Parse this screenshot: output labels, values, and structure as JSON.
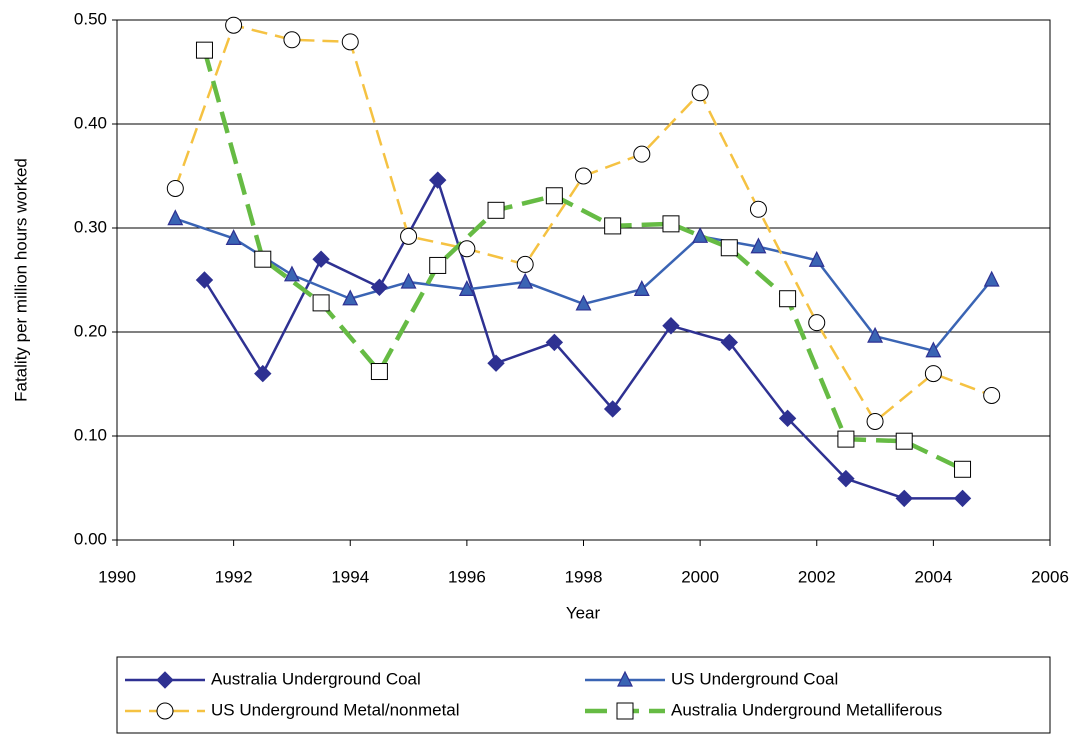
{
  "chart_data": {
    "type": "line",
    "xlabel": "Year",
    "ylabel": "Fatality per million hours worked",
    "xlim": [
      1990,
      2006
    ],
    "xticks": [
      1990,
      1992,
      1994,
      1996,
      1998,
      2000,
      2002,
      2004,
      2006
    ],
    "ylim": [
      0,
      0.5
    ],
    "yticks": [
      {
        "value": 0,
        "label": "0.00"
      },
      {
        "value": 0.1,
        "label": "0.10"
      },
      {
        "value": 0.2,
        "label": "0.20"
      },
      {
        "value": 0.3,
        "label": "0.30"
      },
      {
        "value": 0.4,
        "label": "0.40"
      },
      {
        "value": 0.5,
        "label": "0.50"
      }
    ],
    "grid": true,
    "legend": "bottom",
    "series": [
      {
        "name": "Australia Underground Coal",
        "color": "#2e3192",
        "marker": "diamond",
        "line_style": "solid",
        "x": [
          1991.5,
          1992.5,
          1993.5,
          1994.5,
          1995.5,
          1996.5,
          1997.5,
          1998.5,
          1999.5,
          2000.5,
          2001.5,
          2002.5,
          2003.5,
          2004.5
        ],
        "values": [
          0.25,
          0.16,
          0.27,
          0.243,
          0.346,
          0.17,
          0.19,
          0.126,
          0.206,
          0.19,
          0.117,
          0.059,
          0.04,
          0.04
        ]
      },
      {
        "name": "US Underground Coal",
        "color": "#3a64b4",
        "marker": "triangle",
        "line_style": "solid",
        "x": [
          1991,
          1992,
          1993,
          1994,
          1995,
          1996,
          1997,
          1998,
          1999,
          2000,
          2001,
          2002,
          2003,
          2004,
          2005
        ],
        "values": [
          0.309,
          0.29,
          0.255,
          0.232,
          0.248,
          0.241,
          0.248,
          0.227,
          0.241,
          0.292,
          0.282,
          0.269,
          0.196,
          0.182,
          0.25
        ]
      },
      {
        "name": "US Underground Metal/nonmetal",
        "color": "#f5c242",
        "marker": "circle",
        "line_style": "dashed",
        "x": [
          1991,
          1992,
          1993,
          1994,
          1995,
          1996,
          1997,
          1998,
          1999,
          2000,
          2001,
          2002,
          2003,
          2004,
          2005
        ],
        "values": [
          0.338,
          0.495,
          0.481,
          0.479,
          0.292,
          0.28,
          0.265,
          0.35,
          0.371,
          0.43,
          0.318,
          0.209,
          0.114,
          0.16,
          0.139
        ]
      },
      {
        "name": "Australia Underground Metalliferous",
        "color": "#66bb44",
        "marker": "square",
        "line_style": "dashed",
        "x": [
          1991.5,
          1992.5,
          1993.5,
          1994.5,
          1995.5,
          1996.5,
          1997.5,
          1998.5,
          1999.5,
          2000.5,
          2001.5,
          2002.5,
          2003.5,
          2004.5
        ],
        "values": [
          0.471,
          0.27,
          0.228,
          0.162,
          0.264,
          0.317,
          0.331,
          0.302,
          0.304,
          0.281,
          0.232,
          0.097,
          0.095,
          0.068
        ]
      }
    ]
  }
}
